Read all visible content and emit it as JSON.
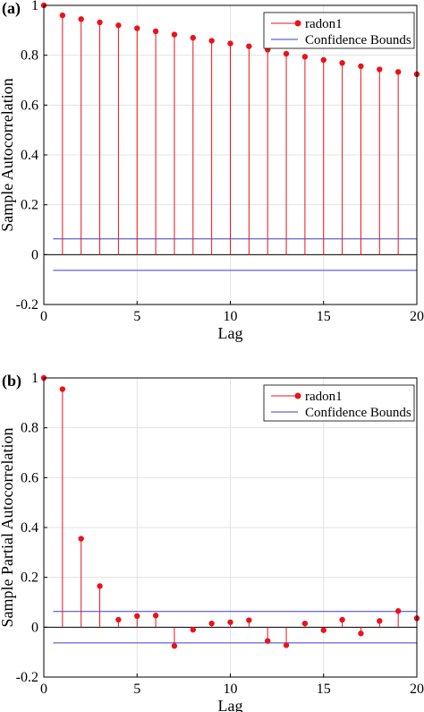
{
  "chart_data": [
    {
      "type": "stem",
      "panel_label": "(a)",
      "xlabel": "Lag",
      "ylabel": "Sample Autocorrelation",
      "xlim": [
        0,
        20
      ],
      "ylim": [
        -0.2,
        1
      ],
      "xticks": [
        "0",
        "5",
        "10",
        "15",
        "20"
      ],
      "yticks": [
        "-0.2",
        "0",
        "0.2",
        "0.4",
        "0.6",
        "0.8",
        "1"
      ],
      "grid": true,
      "legend_position": "top-right",
      "legend": [
        "radon1",
        "Confidence Bounds"
      ],
      "x": [
        0,
        1,
        2,
        3,
        4,
        5,
        6,
        7,
        8,
        9,
        10,
        11,
        12,
        13,
        14,
        15,
        16,
        17,
        18,
        19,
        20
      ],
      "series": [
        {
          "name": "radon1",
          "values": [
            1.0,
            0.96,
            0.945,
            0.932,
            0.92,
            0.908,
            0.896,
            0.883,
            0.87,
            0.858,
            0.847,
            0.836,
            0.822,
            0.806,
            0.794,
            0.781,
            0.769,
            0.756,
            0.743,
            0.733,
            0.724
          ]
        }
      ],
      "confidence_bounds": [
        0.063,
        -0.063
      ],
      "colors": {
        "stem": "#e8141c",
        "bounds": "#3a3ad6",
        "zero": "#000000"
      }
    },
    {
      "type": "stem",
      "panel_label": "(b)",
      "xlabel": "Lag",
      "ylabel": "Sample Partial Autocorrelation",
      "xlim": [
        0,
        20
      ],
      "ylim": [
        -0.2,
        1
      ],
      "xticks": [
        "0",
        "5",
        "10",
        "15",
        "20"
      ],
      "yticks": [
        "-0.2",
        "0",
        "0.2",
        "0.4",
        "0.6",
        "0.8",
        "1"
      ],
      "grid": true,
      "legend_position": "top-right",
      "legend": [
        "radon1",
        "Confidence Bounds"
      ],
      "x": [
        0,
        1,
        2,
        3,
        4,
        5,
        6,
        7,
        8,
        9,
        10,
        11,
        12,
        13,
        14,
        15,
        16,
        17,
        18,
        19,
        20
      ],
      "series": [
        {
          "name": "radon1",
          "values": [
            1.0,
            0.955,
            0.355,
            0.165,
            0.03,
            0.045,
            0.047,
            -0.075,
            -0.01,
            0.015,
            0.02,
            0.028,
            -0.055,
            -0.072,
            0.015,
            -0.012,
            0.03,
            -0.025,
            0.025,
            0.065,
            0.036
          ]
        }
      ],
      "confidence_bounds": [
        0.063,
        -0.063
      ],
      "colors": {
        "stem": "#e8141c",
        "bounds": "#3a3ad6",
        "zero": "#000000"
      }
    }
  ]
}
